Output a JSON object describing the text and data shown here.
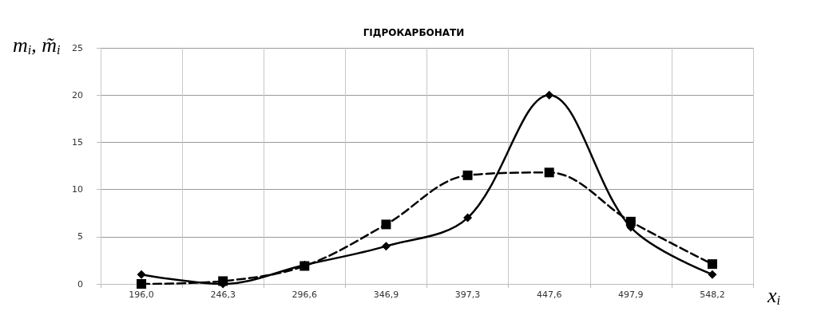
{
  "chart_data": {
    "type": "line",
    "title": "ГІДРОКАРБОНАТИ",
    "xlabel": "x$_{i}$",
    "ylabel": "m$_{i}$, m̃$_{i}$",
    "categories": [
      "196,0",
      "246,3",
      "296,6",
      "346,9",
      "397,3",
      "447,6",
      "497,9",
      "548,2"
    ],
    "series": [
      {
        "color": "#000000",
        "marker": "diamond",
        "line_style": "solid",
        "values": [
          1,
          0,
          2,
          4,
          7,
          20,
          6,
          1
        ]
      },
      {
        "color": "#000000",
        "marker": "square",
        "line_style": "dashed",
        "values": [
          0,
          0.3,
          1.9,
          6.3,
          11.5,
          11.8,
          6.6,
          2.1
        ]
      }
    ],
    "ylim": [
      0,
      25
    ],
    "yticks": [
      0,
      5,
      10,
      15,
      20,
      25
    ],
    "grid": true
  }
}
